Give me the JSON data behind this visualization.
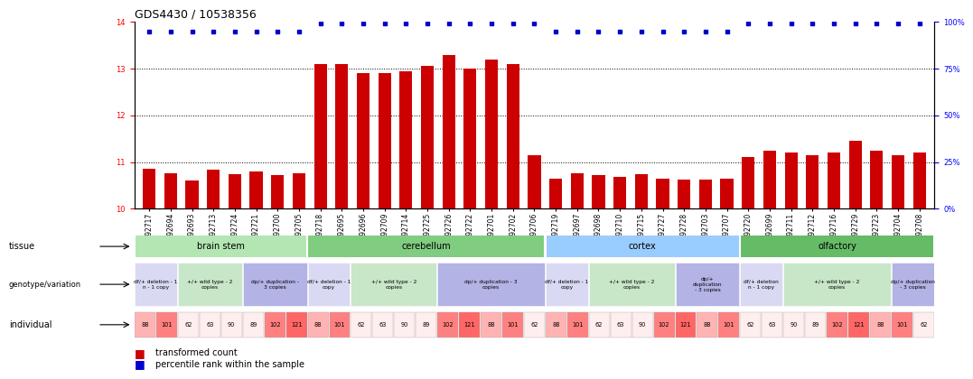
{
  "title": "GDS4430 / 10538356",
  "samples": [
    "GSM792717",
    "GSM792694",
    "GSM792693",
    "GSM792713",
    "GSM792724",
    "GSM792721",
    "GSM792700",
    "GSM792705",
    "GSM792718",
    "GSM792695",
    "GSM792696",
    "GSM792709",
    "GSM792714",
    "GSM792725",
    "GSM792726",
    "GSM792722",
    "GSM792701",
    "GSM792702",
    "GSM792706",
    "GSM792719",
    "GSM792697",
    "GSM792698",
    "GSM792710",
    "GSM792715",
    "GSM792727",
    "GSM792728",
    "GSM792703",
    "GSM792707",
    "GSM792720",
    "GSM792699",
    "GSM792711",
    "GSM792712",
    "GSM792716",
    "GSM792729",
    "GSM792723",
    "GSM792704",
    "GSM792708"
  ],
  "bar_values": [
    10.85,
    10.75,
    10.6,
    10.83,
    10.73,
    10.8,
    10.72,
    10.75,
    13.1,
    13.1,
    12.9,
    12.9,
    12.95,
    13.05,
    13.3,
    13.0,
    13.2,
    13.1,
    11.15,
    10.65,
    10.75,
    10.72,
    10.68,
    10.73,
    10.65,
    10.62,
    10.62,
    10.65,
    11.1,
    11.25,
    11.2,
    11.15,
    11.2,
    11.45,
    11.25,
    11.15,
    11.2
  ],
  "percentile_pct": [
    95,
    95,
    95,
    95,
    95,
    95,
    95,
    95,
    99,
    99,
    99,
    99,
    99,
    99,
    99,
    99,
    99,
    99,
    99,
    95,
    95,
    95,
    95,
    95,
    95,
    95,
    95,
    95,
    99,
    99,
    99,
    99,
    99,
    99,
    99,
    99,
    99
  ],
  "bar_color": "#cc0000",
  "percentile_color": "#0000cc",
  "ylim_left": [
    10.0,
    14.0
  ],
  "yticks_left": [
    10,
    11,
    12,
    13,
    14
  ],
  "ylim_right": [
    0,
    100
  ],
  "yticks_right": [
    0,
    25,
    50,
    75,
    100
  ],
  "tissues": [
    {
      "name": "brain stem",
      "start": 0,
      "end": 8,
      "color": "#b3e6b3"
    },
    {
      "name": "cerebellum",
      "start": 8,
      "end": 19,
      "color": "#80cc80"
    },
    {
      "name": "cortex",
      "start": 19,
      "end": 28,
      "color": "#99ccff"
    },
    {
      "name": "olfactory",
      "start": 28,
      "end": 37,
      "color": "#66bb66"
    }
  ],
  "genotype_groups": [
    {
      "label": "df/+ deletion - 1\nn - 1 copy",
      "start": 0,
      "end": 2,
      "color": "#d9d9f3"
    },
    {
      "label": "+/+ wild type - 2\ncopies",
      "start": 2,
      "end": 5,
      "color": "#c8e6c8"
    },
    {
      "label": "dp/+ duplication -\n3 copies",
      "start": 5,
      "end": 8,
      "color": "#b3b3e6"
    },
    {
      "label": "df/+ deletion - 1\ncopy",
      "start": 8,
      "end": 10,
      "color": "#d9d9f3"
    },
    {
      "label": "+/+ wild type - 2\ncopies",
      "start": 10,
      "end": 14,
      "color": "#c8e6c8"
    },
    {
      "label": "dp/+ duplication - 3\ncopies",
      "start": 14,
      "end": 19,
      "color": "#b3b3e6"
    },
    {
      "label": "df/+ deletion - 1\ncopy",
      "start": 19,
      "end": 21,
      "color": "#d9d9f3"
    },
    {
      "label": "+/+ wild type - 2\ncopies",
      "start": 21,
      "end": 25,
      "color": "#c8e6c8"
    },
    {
      "label": "dp/+\nduplication\n- 3 copies",
      "start": 25,
      "end": 28,
      "color": "#b3b3e6"
    },
    {
      "label": "df/+ deletion\nn - 1 copy",
      "start": 28,
      "end": 30,
      "color": "#d9d9f3"
    },
    {
      "label": "+/+ wild type - 2\ncopies",
      "start": 30,
      "end": 35,
      "color": "#c8e6c8"
    },
    {
      "label": "dp/+ duplication\n- 3 copies",
      "start": 35,
      "end": 37,
      "color": "#b3b3e6"
    }
  ],
  "ind_37": [
    [
      "88",
      "#ffb3b3"
    ],
    [
      "101",
      "#ff8080"
    ],
    [
      "62",
      "#ffeeee"
    ],
    [
      "63",
      "#ffeeee"
    ],
    [
      "90",
      "#ffeeee"
    ],
    [
      "89",
      "#ffeeee"
    ],
    [
      "102",
      "#ff8080"
    ],
    [
      "121",
      "#ff6666"
    ],
    [
      "88",
      "#ffb3b3"
    ],
    [
      "101",
      "#ff8080"
    ],
    [
      "62",
      "#ffeeee"
    ],
    [
      "63",
      "#ffeeee"
    ],
    [
      "90",
      "#ffeeee"
    ],
    [
      "89",
      "#ffeeee"
    ],
    [
      "102",
      "#ff8080"
    ],
    [
      "121",
      "#ff6666"
    ],
    [
      "88",
      "#ffb3b3"
    ],
    [
      "101",
      "#ff8080"
    ],
    [
      "62",
      "#ffeeee"
    ],
    [
      "88",
      "#ffb3b3"
    ],
    [
      "101",
      "#ff8080"
    ],
    [
      "62",
      "#ffeeee"
    ],
    [
      "63",
      "#ffeeee"
    ],
    [
      "90",
      "#ffeeee"
    ],
    [
      "102",
      "#ff8080"
    ],
    [
      "121",
      "#ff6666"
    ],
    [
      "88",
      "#ffb3b3"
    ],
    [
      "101",
      "#ff8080"
    ],
    [
      "62",
      "#ffeeee"
    ],
    [
      "63",
      "#ffeeee"
    ],
    [
      "90",
      "#ffeeee"
    ],
    [
      "89",
      "#ffeeee"
    ],
    [
      "102",
      "#ff8080"
    ],
    [
      "121",
      "#ff6666"
    ],
    [
      "88",
      "#ffb3b3"
    ],
    [
      "101",
      "#ff8080"
    ],
    [
      "62",
      "#ffeeee"
    ]
  ],
  "label_fontsize": 7,
  "tick_fontsize": 6,
  "bar_label_fontsize": 5.5
}
